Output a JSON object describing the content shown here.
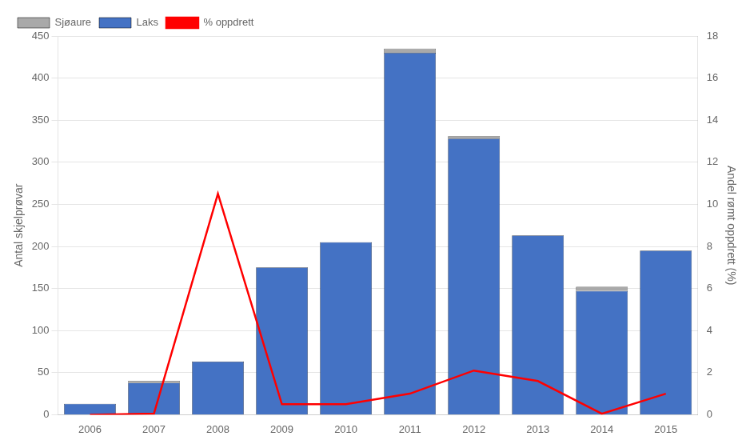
{
  "chart_data": {
    "type": "bar",
    "categories": [
      "2006",
      "2007",
      "2008",
      "2009",
      "2010",
      "2011",
      "2012",
      "2013",
      "2014",
      "2015"
    ],
    "series": [
      {
        "name": "Laks",
        "color": "#4472C4",
        "values": [
          13,
          38,
          63,
          175,
          205,
          430,
          328,
          213,
          147,
          195
        ]
      },
      {
        "name": "Sjøaure",
        "color": "#A9A9A9",
        "values": [
          0,
          2,
          0,
          0,
          0,
          5,
          3,
          0,
          5,
          0
        ]
      },
      {
        "name": "% oppdrett",
        "type": "line",
        "color": "#FF0000",
        "axis": "y2",
        "values": [
          0.0,
          0.05,
          10.5,
          0.5,
          0.5,
          1.0,
          2.1,
          1.6,
          0.05,
          1.0
        ]
      }
    ],
    "stacked": true,
    "ylabel": "Antal skjelprøvar",
    "y2label": "Andel rømt oppdrett (%)",
    "ylim": [
      0,
      450
    ],
    "yticks": [
      0,
      50,
      100,
      150,
      200,
      250,
      300,
      350,
      400,
      450
    ],
    "y2lim": [
      0,
      18
    ],
    "y2ticks": [
      0,
      2,
      4,
      6,
      8,
      10,
      12,
      14,
      16,
      18
    ],
    "grid": true,
    "legend": "upper left"
  }
}
